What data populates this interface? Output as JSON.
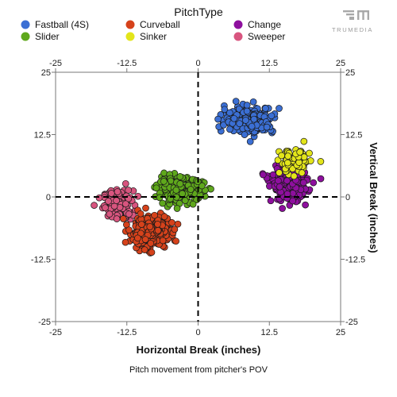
{
  "brand": {
    "name": "TRUMEDIA",
    "logo_icon": "trumedia-logo-icon"
  },
  "chart_data": {
    "type": "scatter",
    "legend_title": "PitchType",
    "legend_placement": "top",
    "xlabel": "Horizontal Break (inches)",
    "ylabel": "Vertical Break (inches)",
    "caption": "Pitch movement from pitcher's POV",
    "xlim": [
      -25,
      25
    ],
    "ylim": [
      -25,
      25
    ],
    "x_ticks": [
      -25,
      -12.5,
      0,
      12.5,
      25
    ],
    "y_ticks": [
      -25,
      -12.5,
      0,
      12.5,
      25
    ],
    "x_tick_labels": [
      "-25",
      "-12.5",
      "0",
      "12.5",
      "25"
    ],
    "y_tick_labels": [
      "-25",
      "-12.5",
      "0",
      "12.5",
      "25"
    ],
    "grid": false,
    "reference_lines": {
      "x": 0,
      "y": 0,
      "style": "dashed"
    },
    "series": [
      {
        "name": "Fastball (4S)",
        "color": "#3b6fd4",
        "center": [
          9,
          15.5
        ],
        "spread": [
          4.2,
          2.6
        ],
        "count": 260,
        "min": [
          3.5,
          10.5
        ],
        "max": [
          16.5,
          20
        ]
      },
      {
        "name": "Curveball",
        "color": "#d6421b",
        "center": [
          -8.5,
          -7
        ],
        "spread": [
          3.4,
          3.2
        ],
        "count": 340,
        "min": [
          -15,
          -13
        ],
        "max": [
          -2.5,
          -1
        ]
      },
      {
        "name": "Change",
        "color": "#8e0f9e",
        "center": [
          16,
          3
        ],
        "spread": [
          3.1,
          3.8
        ],
        "count": 290,
        "min": [
          9.5,
          -3.5
        ],
        "max": [
          22.5,
          10.5
        ]
      },
      {
        "name": "Slider",
        "color": "#5fa81c",
        "center": [
          -3,
          1.5
        ],
        "spread": [
          4.0,
          2.3
        ],
        "count": 270,
        "min": [
          -10.5,
          -3
        ],
        "max": [
          3,
          6.5
        ]
      },
      {
        "name": "Sinker",
        "color": "#e3e51a",
        "center": [
          17,
          7
        ],
        "spread": [
          2.6,
          2.5
        ],
        "count": 110,
        "min": [
          12.5,
          2
        ],
        "max": [
          21.5,
          11.5
        ]
      },
      {
        "name": "Sweeper",
        "color": "#d8557f",
        "center": [
          -14,
          -1.5
        ],
        "spread": [
          2.6,
          2.8
        ],
        "count": 150,
        "min": [
          -20.5,
          -7.5
        ],
        "max": [
          -8.5,
          6
        ]
      }
    ]
  }
}
